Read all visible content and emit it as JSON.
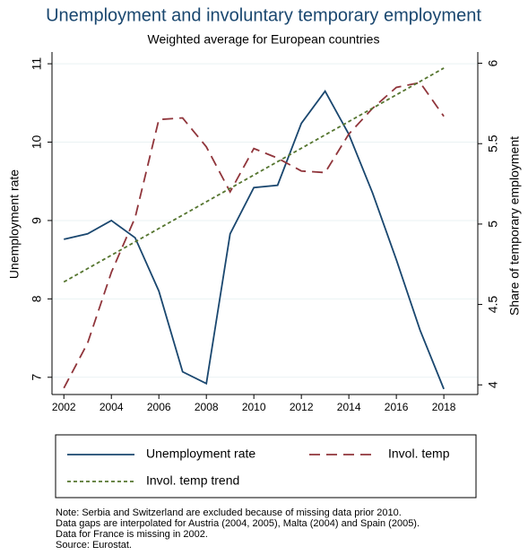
{
  "chart_data": {
    "type": "line",
    "title": "Unemployment and involuntary temporary employment",
    "subtitle": "Weighted average for European countries",
    "ylabel": "Unemployment rate",
    "y2label": "Share of temporary employment",
    "x": [
      2002,
      2003,
      2004,
      2005,
      2006,
      2007,
      2008,
      2009,
      2010,
      2011,
      2012,
      2013,
      2014,
      2015,
      2016,
      2017,
      2018
    ],
    "xlim": [
      2001.5,
      2019.43
    ],
    "xticks": [
      2002,
      2004,
      2006,
      2008,
      2010,
      2012,
      2014,
      2016,
      2018
    ],
    "ylim": [
      6.78,
      11.15
    ],
    "yticks": [
      7,
      8,
      9,
      10,
      11
    ],
    "y2lim": [
      3.94,
      6.07
    ],
    "y2ticks": [
      4,
      4.5,
      5,
      5.5,
      6
    ],
    "grid": true,
    "series": [
      {
        "name": "Unemployment rate",
        "color": "#1a476f",
        "dash": "solid",
        "values": [
          8.76,
          8.83,
          9.0,
          8.78,
          8.1,
          7.07,
          6.92,
          8.83,
          9.42,
          9.45,
          10.24,
          10.65,
          10.1,
          9.35,
          8.5,
          7.6,
          6.85
        ]
      },
      {
        "name": "Invol. temp",
        "color": "#90353b",
        "dash": "long",
        "axis": "y2",
        "values": [
          3.98,
          4.26,
          4.7,
          5.04,
          5.65,
          5.66,
          5.48,
          5.2,
          5.47,
          5.41,
          5.33,
          5.32,
          5.56,
          5.72,
          5.85,
          5.88,
          5.67
        ]
      },
      {
        "name": "Invol. temp trend",
        "color": "#55752f",
        "dash": "short",
        "axis": "y2",
        "x": [
          2002,
          2018
        ],
        "values": [
          4.64,
          5.97
        ]
      }
    ],
    "notes": [
      "Note: Serbia and Switzerland are excluded because of missing data prior 2010.",
      "Data gaps are interpolated for Austria (2004, 2005), Malta (2004) and Spain (2005).",
      "Data for France is missing in 2002.",
      "Source: Eurostat."
    ]
  }
}
